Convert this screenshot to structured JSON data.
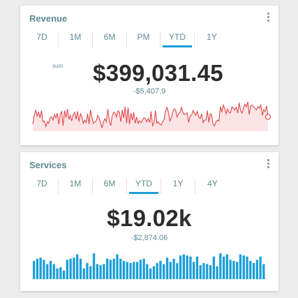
{
  "colors": {
    "accent": "#1a9ed8",
    "title": "#5c8a95",
    "value": "#2c2c2c",
    "line": "#e2474a",
    "area": "#fbe4e5",
    "bar": "#1a9ed8"
  },
  "revenue": {
    "title": "Revenue",
    "menu_icon": "kebab-menu-icon",
    "tabs": [
      "7D",
      "1M",
      "6M",
      "PM",
      "YTD",
      "1Y"
    ],
    "active_tab": "YTD",
    "sum_label": "sum",
    "value": "$399,031.45",
    "delta": "-$5,407.9"
  },
  "services": {
    "title": "Services",
    "menu_icon": "kebab-menu-icon",
    "tabs": [
      "7D",
      "1M",
      "6M",
      "YTD",
      "1Y",
      "4Y"
    ],
    "active_tab": "YTD",
    "value": "$19.02k",
    "delta": "-$2,874.06"
  },
  "chart_data": [
    {
      "type": "area",
      "values": [
        9,
        20,
        27,
        19,
        24,
        17,
        26,
        12,
        13,
        6,
        12,
        10,
        17,
        18,
        14,
        21,
        17,
        23,
        9,
        21,
        25,
        7,
        26,
        17,
        28,
        15,
        20,
        13,
        21,
        24,
        15,
        25,
        12,
        22,
        18,
        10,
        14,
        11,
        22,
        9,
        27,
        17,
        10,
        12,
        13,
        20,
        16,
        11,
        4,
        12,
        16,
        12,
        28,
        13,
        7,
        19,
        24,
        23,
        18,
        26,
        24,
        12,
        27,
        17,
        31,
        10,
        30,
        9,
        23,
        14,
        24,
        10,
        18,
        10,
        13,
        11,
        14,
        17,
        16,
        12,
        16,
        11,
        25,
        7,
        11,
        26,
        10,
        12,
        9,
        8,
        12,
        15,
        25,
        30,
        24,
        13,
        17,
        24,
        28,
        27,
        18,
        22,
        24,
        30,
        24,
        21,
        22,
        23,
        11,
        19,
        20,
        26,
        23,
        20,
        25,
        18,
        16,
        22,
        11,
        14,
        14,
        26,
        11,
        22,
        20,
        8,
        7,
        12,
        14,
        13,
        31,
        24,
        33,
        29,
        22,
        28,
        24,
        23,
        31,
        29,
        27,
        30,
        23,
        36,
        26,
        23,
        29,
        34,
        31,
        37,
        21,
        32,
        33,
        31,
        29,
        27,
        31,
        29,
        33,
        20,
        27,
        25,
        32,
        18
      ]
    },
    {
      "type": "bar",
      "values": [
        17,
        19,
        20,
        18,
        14,
        17,
        14,
        10,
        11,
        8,
        18,
        19,
        20,
        23,
        19,
        10,
        15,
        12,
        24,
        14,
        13,
        14,
        19,
        18,
        19,
        23,
        19,
        17,
        16,
        15,
        16,
        16,
        18,
        19,
        14,
        10,
        12,
        15,
        17,
        14,
        20,
        16,
        19,
        15,
        22,
        23,
        22,
        21,
        16,
        21,
        13,
        15,
        14,
        13,
        21,
        12,
        24,
        21,
        23,
        18,
        17,
        16,
        23,
        22,
        21,
        17,
        15,
        18,
        21,
        14
      ]
    }
  ]
}
